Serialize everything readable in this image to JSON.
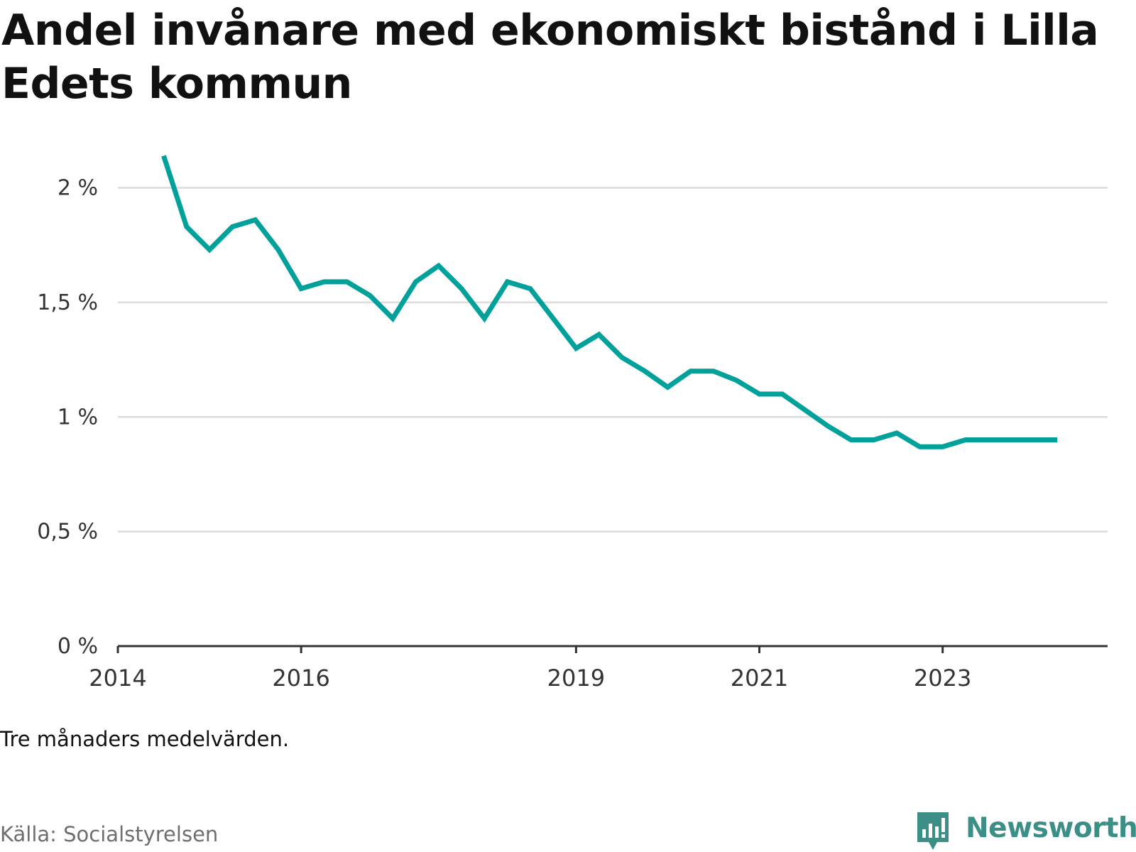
{
  "chart_data": {
    "type": "line",
    "title": "Andel invånare med ekonomiskt bistånd i Lilla Edets kommun",
    "note": "Tre månaders medelvärden.",
    "source": "Källa: Socialstyrelsen",
    "brand": "Newsworthy",
    "x_ticks": [
      "2014",
      "2016",
      "2019",
      "2021",
      "2023"
    ],
    "y_ticks": [
      "0 %",
      "0,5 %",
      "1 %",
      "1,5 %",
      "2 %"
    ],
    "ylim": [
      0,
      2.2
    ],
    "grid": true,
    "line_color": "#00a19a",
    "series": [
      {
        "x": [
          2014.5,
          2014.75,
          2015.0,
          2015.25,
          2015.5,
          2015.75,
          2016.0,
          2016.25,
          2016.5,
          2016.75,
          2017.0,
          2017.25,
          2017.5,
          2017.75,
          2018.0,
          2018.25,
          2018.5,
          2018.75,
          2019.0,
          2019.25,
          2019.5,
          2019.75,
          2020.0,
          2020.25,
          2020.5,
          2020.75,
          2021.0,
          2021.25,
          2021.5,
          2021.75,
          2022.0,
          2022.25,
          2022.5,
          2022.75,
          2023.0,
          2023.25,
          2023.5,
          2023.75,
          2024.0,
          2024.25
        ],
        "values": [
          2.14,
          1.83,
          1.73,
          1.83,
          1.86,
          1.73,
          1.56,
          1.59,
          1.59,
          1.53,
          1.43,
          1.59,
          1.66,
          1.56,
          1.43,
          1.59,
          1.56,
          1.43,
          1.3,
          1.36,
          1.26,
          1.2,
          1.13,
          1.2,
          1.2,
          1.16,
          1.1,
          1.1,
          1.03,
          0.96,
          0.9,
          0.9,
          0.93,
          0.87,
          0.87,
          0.9,
          0.9,
          0.9,
          0.9,
          0.9
        ]
      }
    ]
  }
}
